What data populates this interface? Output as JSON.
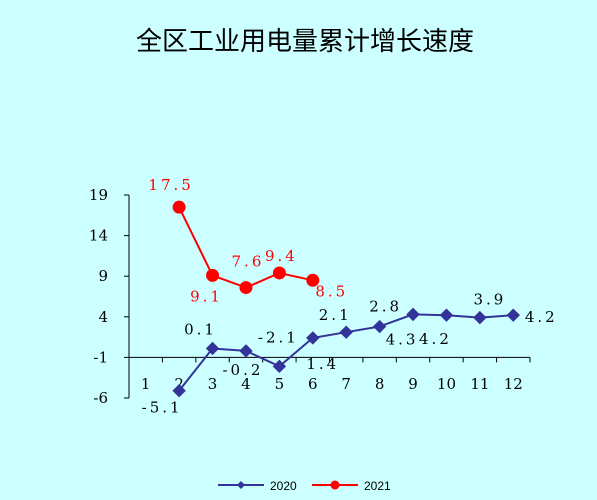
{
  "chart_data": {
    "type": "line",
    "title": "全区工业用电量累计增长速度",
    "xlabel": "",
    "ylabel": "",
    "categories": [
      "1",
      "2",
      "3",
      "4",
      "5",
      "6",
      "7",
      "8",
      "9",
      "10",
      "11",
      "12"
    ],
    "y_ticks": [
      "19",
      "14",
      "9",
      "4",
      "-1",
      "-6"
    ],
    "ylim": [
      -6,
      19
    ],
    "grid": false,
    "legend_position": "bottom",
    "series": [
      {
        "name": "2020",
        "color": "#333399",
        "marker": "diamond",
        "values": [
          null,
          -5.1,
          0.1,
          -0.2,
          -2.1,
          1.4,
          2.1,
          2.8,
          4.3,
          4.2,
          3.9,
          4.2
        ],
        "labels": [
          null,
          "-5.1",
          "0.1",
          "-0.2",
          "-2.1",
          "1.4",
          "2.1",
          "2.8",
          "4.3",
          "4.2",
          "3.9",
          "4.2"
        ]
      },
      {
        "name": "2021",
        "color": "#ff0000",
        "marker": "circle",
        "values": [
          null,
          17.5,
          9.1,
          7.6,
          9.4,
          8.5,
          null,
          null,
          null,
          null,
          null,
          null
        ],
        "labels": [
          null,
          "17.5",
          "9.1",
          "7.6",
          "9.4",
          "8.5",
          null,
          null,
          null,
          null,
          null,
          null
        ]
      }
    ]
  }
}
